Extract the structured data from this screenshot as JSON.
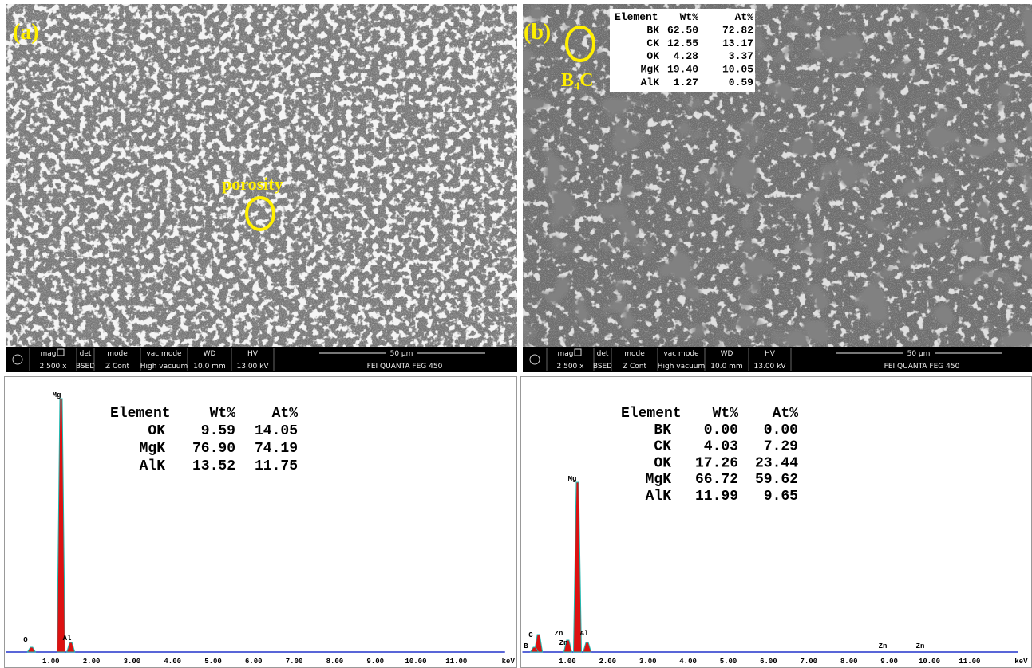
{
  "panel_a": {
    "label": "(a)",
    "annotation": "porosity"
  },
  "panel_b": {
    "label": "(b)",
    "annotation": "B₄C",
    "table": {
      "headers": [
        "Element",
        "Wt%",
        "At%"
      ],
      "rows": [
        [
          "BK",
          "62.50",
          "72.82"
        ],
        [
          "CK",
          "12.55",
          "13.17"
        ],
        [
          "OK",
          "4.28",
          "3.37"
        ],
        [
          "MgK",
          "19.40",
          "10.05"
        ],
        [
          "AlK",
          "1.27",
          "0.59"
        ]
      ]
    }
  },
  "info_bar": {
    "fields": [
      {
        "label": "mag",
        "value": "2 500 x"
      },
      {
        "label": "det",
        "value": "BSED"
      },
      {
        "label": "mode",
        "value": "Z Cont"
      },
      {
        "label": "vac mode",
        "value": "High vacuum"
      },
      {
        "label": "WD",
        "value": "10.0 mm"
      },
      {
        "label": "HV",
        "value": "13.00 kV"
      }
    ],
    "scale": "50 µm",
    "instrument": "FEI QUANTA FEG 450"
  },
  "spectrum_a": {
    "table": {
      "headers": [
        "Element",
        "Wt%",
        "At%"
      ],
      "rows": [
        [
          "OK",
          "9.59",
          "14.05"
        ],
        [
          "MgK",
          "76.90",
          "74.19"
        ],
        [
          "AlK",
          "13.52",
          "11.75"
        ]
      ]
    },
    "peak_labels": [
      "Mg",
      "O",
      "Al"
    ]
  },
  "spectrum_b": {
    "table": {
      "headers": [
        "Element",
        "Wt%",
        "At%"
      ],
      "rows": [
        [
          "BK",
          "0.00",
          "0.00"
        ],
        [
          "CK",
          "4.03",
          "7.29"
        ],
        [
          "OK",
          "17.26",
          "23.44"
        ],
        [
          "MgK",
          "66.72",
          "59.62"
        ],
        [
          "AlK",
          "11.99",
          "9.65"
        ]
      ]
    },
    "peak_labels": [
      "Mg",
      "C",
      "B",
      "Zn",
      "Zn",
      "Al",
      "Zn",
      "Zn"
    ]
  },
  "x_ticks": [
    "1.00",
    "2.00",
    "3.00",
    "4.00",
    "5.00",
    "6.00",
    "7.00",
    "8.00",
    "9.00",
    "10.00",
    "11.00"
  ],
  "x_unit": "keV"
}
